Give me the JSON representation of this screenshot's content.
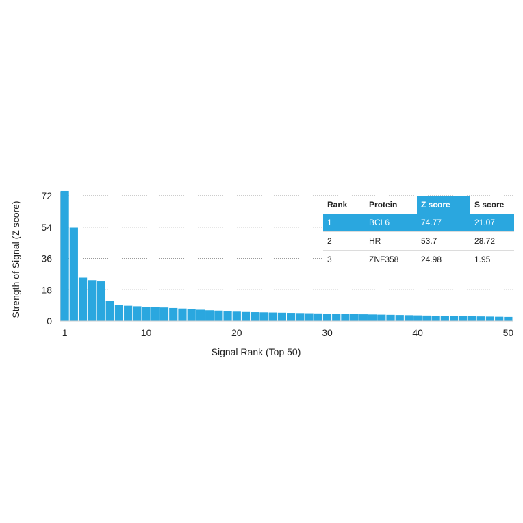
{
  "chart_data": {
    "type": "bar",
    "xlabel": "Signal Rank (Top 50)",
    "ylabel": "Strength of Signal (Z score)",
    "ylim": [
      0,
      72
    ],
    "yticks": [
      0,
      18,
      36,
      54,
      72
    ],
    "xticks": [
      1,
      10,
      20,
      30,
      40,
      50
    ],
    "grid": true,
    "bar_color": "#2aa7df",
    "x": [
      1,
      2,
      3,
      4,
      5,
      6,
      7,
      8,
      9,
      10,
      11,
      12,
      13,
      14,
      15,
      16,
      17,
      18,
      19,
      20,
      21,
      22,
      23,
      24,
      25,
      26,
      27,
      28,
      29,
      30,
      31,
      32,
      33,
      34,
      35,
      36,
      37,
      38,
      39,
      40,
      41,
      42,
      43,
      44,
      45,
      46,
      47,
      48,
      49,
      50
    ],
    "values": [
      74.77,
      53.7,
      24.98,
      23.5,
      22.8,
      11.5,
      9.2,
      8.8,
      8.5,
      8.2,
      8.0,
      7.8,
      7.5,
      7.2,
      6.8,
      6.5,
      6.2,
      6.0,
      5.5,
      5.4,
      5.2,
      5.1,
      5.0,
      4.9,
      4.8,
      4.7,
      4.6,
      4.5,
      4.4,
      4.3,
      4.2,
      4.1,
      4.0,
      3.9,
      3.8,
      3.7,
      3.6,
      3.5,
      3.4,
      3.3,
      3.2,
      3.1,
      3.0,
      2.9,
      2.8,
      2.8,
      2.7,
      2.6,
      2.5,
      2.4
    ]
  },
  "table": {
    "headers": {
      "rank": "Rank",
      "protein": "Protein",
      "z_score": "Z score",
      "s_score": "S score"
    },
    "rows": [
      {
        "rank": "1",
        "protein": "BCL6",
        "z_score": "74.77",
        "s_score": "21.07"
      },
      {
        "rank": "2",
        "protein": "HR",
        "z_score": "53.7",
        "s_score": "28.72"
      },
      {
        "rank": "3",
        "protein": "ZNF358",
        "z_score": "24.98",
        "s_score": "1.95"
      }
    ],
    "highlight_color": "#2aa7df"
  }
}
